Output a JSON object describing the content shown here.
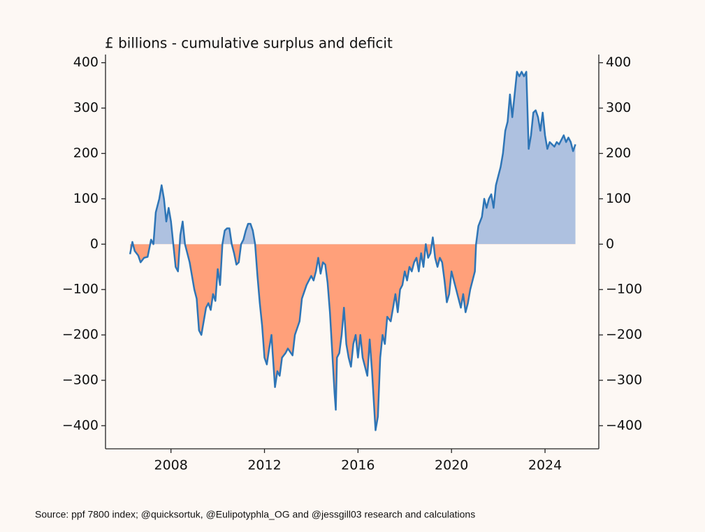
{
  "chart_data": {
    "type": "line",
    "title": "£ billions - cumulative surplus and deficit",
    "source": "Source: ppf 7800 index; @quicksortuk, @Eulipotyphla_OG and @jessgill03 research and calculations",
    "color": "#2e75b6",
    "fill_above": "#aec1e0",
    "fill_below": "#ffa07a",
    "xlim": [
      2005.2,
      2026.3
    ],
    "xticks": [
      2008,
      2012,
      2016,
      2020,
      2024
    ],
    "ylim": [
      -451,
      418
    ],
    "yticks": [
      {
        "value": -400,
        "label": "−400"
      },
      {
        "value": -300,
        "label": "−300"
      },
      {
        "value": -200,
        "label": "−200"
      },
      {
        "value": -100,
        "label": "−100"
      },
      0,
      100,
      200,
      300,
      400
    ],
    "right_axis": true,
    "grid": false,
    "x": [
      2006.25,
      2006.35,
      2006.45,
      2006.6,
      2006.7,
      2006.85,
      2007.0,
      2007.15,
      2007.25,
      2007.35,
      2007.5,
      2007.6,
      2007.7,
      2007.8,
      2007.9,
      2008.0,
      2008.1,
      2008.2,
      2008.3,
      2008.4,
      2008.5,
      2008.6,
      2008.8,
      2009.0,
      2009.1,
      2009.2,
      2009.3,
      2009.4,
      2009.5,
      2009.6,
      2009.7,
      2009.8,
      2009.9,
      2010.0,
      2010.1,
      2010.2,
      2010.3,
      2010.4,
      2010.5,
      2010.6,
      2010.7,
      2010.8,
      2010.9,
      2011.0,
      2011.1,
      2011.2,
      2011.3,
      2011.4,
      2011.5,
      2011.6,
      2011.7,
      2011.8,
      2011.9,
      2012.0,
      2012.1,
      2012.2,
      2012.3,
      2012.35,
      2012.45,
      2012.55,
      2012.65,
      2012.75,
      2012.9,
      2013.0,
      2013.2,
      2013.3,
      2013.5,
      2013.6,
      2013.8,
      2014.0,
      2014.1,
      2014.2,
      2014.3,
      2014.4,
      2014.5,
      2014.6,
      2014.7,
      2014.8,
      2014.9,
      2015.0,
      2015.05,
      2015.1,
      2015.2,
      2015.3,
      2015.4,
      2015.5,
      2015.6,
      2015.7,
      2015.8,
      2015.9,
      2016.0,
      2016.1,
      2016.2,
      2016.3,
      2016.4,
      2016.5,
      2016.6,
      2016.75,
      2016.85,
      2016.95,
      2017.05,
      2017.15,
      2017.25,
      2017.4,
      2017.5,
      2017.6,
      2017.7,
      2017.8,
      2017.9,
      2018.0,
      2018.1,
      2018.2,
      2018.3,
      2018.4,
      2018.5,
      2018.6,
      2018.7,
      2018.8,
      2018.9,
      2019.0,
      2019.1,
      2019.2,
      2019.3,
      2019.4,
      2019.5,
      2019.6,
      2019.7,
      2019.8,
      2019.9,
      2020.0,
      2020.1,
      2020.2,
      2020.3,
      2020.4,
      2020.5,
      2020.6,
      2020.7,
      2020.8,
      2020.9,
      2021.0,
      2021.05,
      2021.15,
      2021.3,
      2021.4,
      2021.5,
      2021.6,
      2021.7,
      2021.8,
      2021.9,
      2022.0,
      2022.1,
      2022.2,
      2022.3,
      2022.4,
      2022.5,
      2022.6,
      2022.7,
      2022.8,
      2022.9,
      2023.0,
      2023.1,
      2023.2,
      2023.3,
      2023.4,
      2023.5,
      2023.6,
      2023.7,
      2023.8,
      2023.9,
      2024.0,
      2024.1,
      2024.2,
      2024.3,
      2024.4,
      2024.5,
      2024.6,
      2024.7,
      2024.8,
      2024.9,
      2025.0,
      2025.1,
      2025.2,
      2025.3
    ],
    "values": [
      -22,
      5,
      -15,
      -25,
      -40,
      -30,
      -28,
      10,
      0,
      70,
      100,
      130,
      100,
      50,
      80,
      50,
      0,
      -50,
      -60,
      20,
      50,
      0,
      -40,
      -100,
      -120,
      -190,
      -200,
      -170,
      -140,
      -130,
      -145,
      -110,
      -125,
      -55,
      -90,
      0,
      30,
      35,
      35,
      0,
      -20,
      -45,
      -40,
      0,
      10,
      30,
      45,
      45,
      30,
      0,
      -70,
      -130,
      -180,
      -250,
      -265,
      -230,
      -200,
      -240,
      -315,
      -280,
      -290,
      -250,
      -240,
      -230,
      -245,
      -200,
      -170,
      -120,
      -90,
      -70,
      -80,
      -60,
      -30,
      -65,
      -40,
      -45,
      -85,
      -150,
      -240,
      -330,
      -365,
      -250,
      -240,
      -200,
      -140,
      -220,
      -250,
      -270,
      -220,
      -200,
      -250,
      -200,
      -250,
      -270,
      -290,
      -210,
      -280,
      -410,
      -380,
      -250,
      -200,
      -220,
      -160,
      -170,
      -140,
      -110,
      -150,
      -100,
      -90,
      -60,
      -80,
      -50,
      -60,
      -40,
      -30,
      -60,
      -20,
      -50,
      0,
      -30,
      -20,
      15,
      -30,
      -50,
      -30,
      -40,
      -80,
      -128,
      -110,
      -60,
      -80,
      -100,
      -120,
      -140,
      -110,
      -150,
      -130,
      -100,
      -80,
      -60,
      0,
      40,
      60,
      100,
      80,
      100,
      110,
      80,
      130,
      150,
      170,
      200,
      250,
      270,
      330,
      280,
      330,
      380,
      370,
      380,
      370,
      380,
      210,
      240,
      290,
      295,
      280,
      250,
      290,
      240,
      210,
      225,
      220,
      215,
      225,
      220,
      230,
      240,
      225,
      235,
      225,
      205,
      220
    ]
  }
}
